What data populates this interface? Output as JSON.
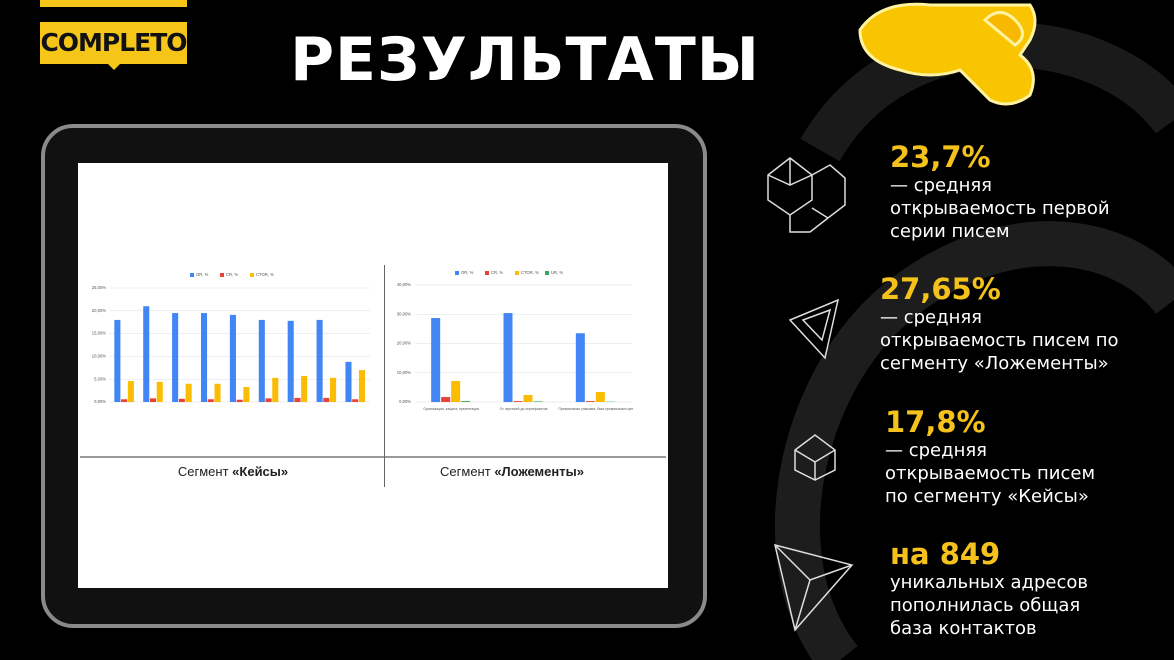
{
  "logo": "COMPLETO",
  "title": "РЕЗУЛЬТАТЫ",
  "stats": [
    {
      "value": "23,7%",
      "lines": [
        "— средняя",
        "открываемость первой",
        "серии писем"
      ]
    },
    {
      "value": "27,65%",
      "lines": [
        "— средняя",
        "открываемость писем по",
        "сегменту «Ложементы»"
      ]
    },
    {
      "value": "17,8%",
      "lines": [
        "— средняя",
        "открываемость писем",
        "по сегменту «Кейсы»"
      ]
    },
    {
      "value": "на 849",
      "lines": [
        "уникальных адресов",
        "пополнилась общая",
        "база контактов"
      ]
    }
  ],
  "captions": [
    {
      "prefix": "Сегмент",
      "segment": "«Кейсы»"
    },
    {
      "prefix": "Сегмент",
      "segment": "«Ложементы»"
    }
  ],
  "chart_data": [
    {
      "type": "bar",
      "categories": [
        null,
        null,
        null,
        null,
        null,
        null,
        null,
        null,
        null
      ],
      "series": [
        {
          "name": "OR, %",
          "color": "#4285f4",
          "values": [
            18.0,
            21.0,
            19.5,
            19.5,
            19.1,
            18.0,
            17.8,
            18.0,
            8.8
          ]
        },
        {
          "name": "CR, %",
          "color": "#ea4335",
          "values": [
            0.6,
            0.8,
            0.7,
            0.6,
            0.5,
            0.8,
            0.9,
            0.9,
            0.6
          ]
        },
        {
          "name": "CTOR, %",
          "color": "#fbbc04",
          "values": [
            4.6,
            4.4,
            4.0,
            4.0,
            3.3,
            5.3,
            5.7,
            5.3,
            7.0
          ]
        }
      ],
      "ylim": [
        0,
        25
      ],
      "yticks": [
        {
          "value": 0,
          "label": "0,00%"
        },
        {
          "value": 5,
          "label": "5,00%"
        },
        {
          "value": 10,
          "label": "10,00%"
        },
        {
          "value": 15,
          "label": "15,00%"
        },
        {
          "value": 20,
          "label": "20,00%"
        },
        {
          "value": 25,
          "label": "25,00%"
        }
      ],
      "grid": true
    },
    {
      "type": "bar",
      "categories": [
        "Организация, защита, презентация",
        "От чертежей до сертификатов",
        "Премиальная упаковка: база премиальных цен"
      ],
      "series": [
        {
          "name": "OR, %",
          "color": "#4285f4",
          "values": [
            28.7,
            30.4,
            23.5
          ]
        },
        {
          "name": "CR, %",
          "color": "#ea4335",
          "values": [
            1.7,
            0.3,
            0.3
          ]
        },
        {
          "name": "CTOR, %",
          "color": "#fbbc04",
          "values": [
            7.2,
            2.4,
            3.4
          ]
        },
        {
          "name": "UR, %",
          "color": "#34a853",
          "values": [
            0.3,
            0.2,
            0.1
          ]
        }
      ],
      "ylim": [
        0,
        40
      ],
      "yticks": [
        {
          "value": 0,
          "label": "0,00%"
        },
        {
          "value": 10,
          "label": "10,00%"
        },
        {
          "value": 20,
          "label": "20,00%"
        },
        {
          "value": 30,
          "label": "30,00%"
        },
        {
          "value": 40,
          "label": "40,00%"
        }
      ],
      "grid": true
    }
  ]
}
